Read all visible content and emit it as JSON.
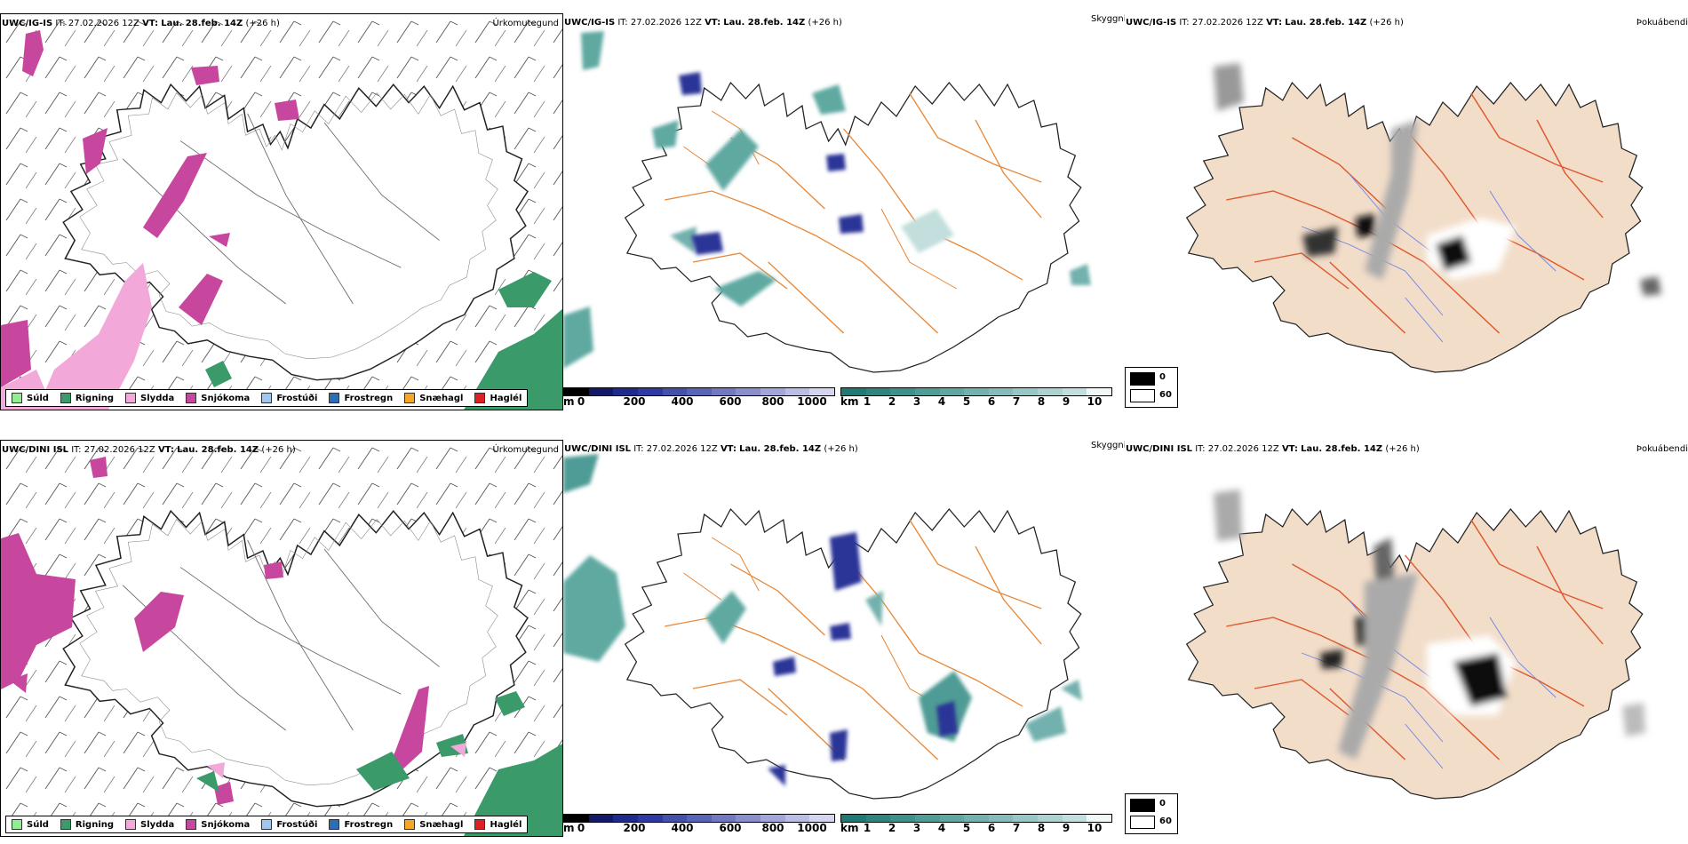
{
  "rows": [
    {
      "model": "UWC/IG-IS",
      "it_label": "IT:",
      "it_value": "27.02.2026 12Z",
      "vt_label": "VT:",
      "vt_value": "Lau. 28.feb. 14Z",
      "lead": "(+26 h)"
    },
    {
      "model": "UWC/DINI ISL",
      "it_label": "IT:",
      "it_value": "27.02.2026 12Z",
      "vt_label": "VT:",
      "vt_value": "Lau. 28.feb. 14Z",
      "lead": "(+26 h)"
    }
  ],
  "panel_titles": {
    "precip": "Úrkomutegund",
    "visibility": "Skyggni",
    "fog": "Þokuábendi"
  },
  "precip_legend": [
    {
      "label": "Súld",
      "color": "#90ee90"
    },
    {
      "label": "Rigning",
      "color": "#3a9a6a"
    },
    {
      "label": "Slydda",
      "color": "#f2a8d8"
    },
    {
      "label": "Snjókoma",
      "color": "#c8479e"
    },
    {
      "label": "Frostúði",
      "color": "#9ec8f0"
    },
    {
      "label": "Frostregn",
      "color": "#2f6db5"
    },
    {
      "label": "Snæhagl",
      "color": "#f5a623"
    },
    {
      "label": "Haglél",
      "color": "#e02020"
    }
  ],
  "cloud_base_bar": {
    "unit": "m",
    "ticks": [
      "0",
      "200",
      "400",
      "600",
      "800",
      "1000"
    ],
    "colors": [
      "#000000",
      "#141866",
      "#1f2a8c",
      "#2e3aa0",
      "#4550aa",
      "#5a64b4",
      "#7279c0",
      "#8a8fcc",
      "#a2a6d8",
      "#babde4",
      "#d4d6ef"
    ]
  },
  "visibility_bar": {
    "unit": "km",
    "ticks": [
      "1",
      "2",
      "3",
      "4",
      "5",
      "6",
      "7",
      "8",
      "9",
      "10"
    ],
    "colors": [
      "#1f7a73",
      "#2e857e",
      "#3e908a",
      "#4f9b95",
      "#60a6a1",
      "#72b1ad",
      "#85bcb9",
      "#98c8c5",
      "#acd3d1",
      "#c2dfdd",
      "#f2f8f8"
    ]
  },
  "fog_legend": [
    {
      "label": "0",
      "color": "#000000"
    },
    {
      "label": "60",
      "color": "#ffffff"
    }
  ],
  "colors": {
    "snow": "#c8479e",
    "sleet": "#f2a8d8",
    "rain": "#3a9a6a",
    "roads_orange": "#e8893a",
    "roads_red": "#e0582e",
    "land_fog": "#f2ddc9",
    "rivers": "#6f86e8",
    "vis_teal": "#5fa9a1",
    "cloud_blue": "#2b3597"
  }
}
